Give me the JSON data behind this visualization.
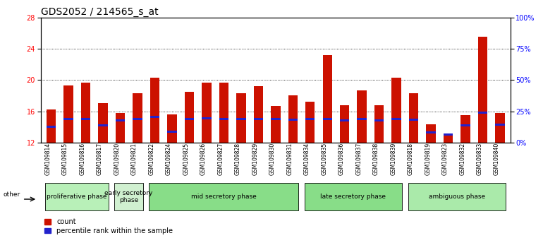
{
  "title": "GDS2052 / 214565_s_at",
  "samples": [
    "GSM109814",
    "GSM109815",
    "GSM109816",
    "GSM109817",
    "GSM109820",
    "GSM109821",
    "GSM109822",
    "GSM109824",
    "GSM109825",
    "GSM109826",
    "GSM109827",
    "GSM109828",
    "GSM109829",
    "GSM109830",
    "GSM109831",
    "GSM109834",
    "GSM109835",
    "GSM109836",
    "GSM109837",
    "GSM109838",
    "GSM109839",
    "GSM109818",
    "GSM109819",
    "GSM109823",
    "GSM109832",
    "GSM109833",
    "GSM109840"
  ],
  "count_values": [
    16.2,
    19.3,
    19.7,
    17.0,
    15.8,
    18.3,
    20.3,
    15.6,
    18.5,
    19.7,
    19.7,
    18.3,
    19.2,
    16.7,
    18.0,
    17.2,
    23.2,
    16.8,
    18.7,
    16.8,
    20.3,
    18.3,
    14.3,
    13.2,
    15.5,
    25.5,
    15.8
  ],
  "percentile_values": [
    14.0,
    15.0,
    15.0,
    14.2,
    14.8,
    15.0,
    15.3,
    13.4,
    15.0,
    15.1,
    15.0,
    15.0,
    15.0,
    15.0,
    14.9,
    15.0,
    15.0,
    14.8,
    15.0,
    14.8,
    15.0,
    14.9,
    13.3,
    13.0,
    14.2,
    15.8,
    14.3
  ],
  "phases": [
    {
      "name": "proliferative phase",
      "start": 0,
      "end": 4,
      "color": "#b8f0b8"
    },
    {
      "name": "early secretory\nphase",
      "start": 4,
      "end": 6,
      "color": "#d0f0d0"
    },
    {
      "name": "mid secretory phase",
      "start": 6,
      "end": 15,
      "color": "#88dd88"
    },
    {
      "name": "late secretory phase",
      "start": 15,
      "end": 21,
      "color": "#88dd88"
    },
    {
      "name": "ambiguous phase",
      "start": 21,
      "end": 27,
      "color": "#aaeaaa"
    }
  ],
  "ylim_left": [
    12,
    28
  ],
  "ylim_right": [
    0,
    100
  ],
  "yticks_left": [
    12,
    16,
    20,
    24,
    28
  ],
  "yticks_right": [
    0,
    25,
    50,
    75,
    100
  ],
  "bar_color_count": "#cc1100",
  "bar_color_pct": "#2222cc",
  "bar_width": 0.55,
  "bg_color": "#ffffff",
  "title_fontsize": 10,
  "tick_fontsize": 7,
  "label_fontsize": 7.5
}
